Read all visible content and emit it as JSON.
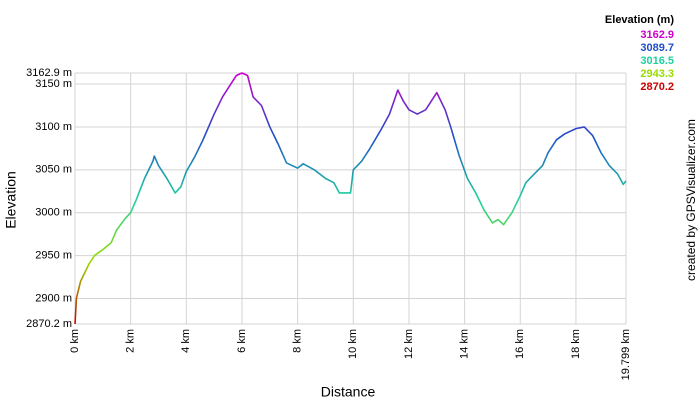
{
  "chart_data": {
    "type": "line",
    "x_label": "Distance",
    "y_label": "Elevation",
    "credit": "created by GPSVisualizer.com",
    "x": [
      0,
      0.05,
      0.2,
      0.5,
      0.7,
      1.0,
      1.3,
      1.5,
      1.8,
      2.0,
      2.2,
      2.5,
      2.8,
      2.85,
      3.0,
      3.3,
      3.6,
      3.8,
      4.0,
      4.3,
      4.6,
      4.8,
      5.0,
      5.3,
      5.5,
      5.8,
      6.0,
      6.2,
      6.4,
      6.7,
      7.0,
      7.3,
      7.6,
      8.0,
      8.2,
      8.6,
      9.0,
      9.3,
      9.5,
      9.9,
      10.0,
      10.3,
      10.6,
      11.0,
      11.3,
      11.6,
      11.8,
      12.0,
      12.3,
      12.6,
      12.9,
      13.0,
      13.3,
      13.5,
      13.8,
      14.1,
      14.4,
      14.7,
      14.9,
      15.0,
      15.2,
      15.4,
      15.7,
      16.0,
      16.2,
      16.5,
      16.8,
      17.0,
      17.3,
      17.6,
      18.0,
      18.3,
      18.6,
      18.9,
      19.2,
      19.5,
      19.7,
      19.799
    ],
    "values": [
      2870.2,
      2900,
      2920,
      2940,
      2950,
      2957,
      2965,
      2980,
      2993,
      3000,
      3015,
      3040,
      3060,
      3066,
      3055,
      3040,
      3023,
      3030,
      3048,
      3065,
      3085,
      3100,
      3115,
      3135,
      3145,
      3160,
      3162.9,
      3160,
      3135,
      3125,
      3100,
      3080,
      3058,
      3052,
      3057,
      3050,
      3040,
      3035,
      3023,
      3023,
      3050,
      3060,
      3075,
      3097,
      3115,
      3143,
      3130,
      3120,
      3115,
      3120,
      3135,
      3140,
      3120,
      3100,
      3067,
      3040,
      3023,
      3003,
      2993,
      2988,
      2992,
      2986,
      3000,
      3020,
      3035,
      3045,
      3055,
      3070,
      3085,
      3092,
      3098,
      3100,
      3090,
      3070,
      3055,
      3045,
      3033,
      3037
    ],
    "xlim": [
      0,
      19.799
    ],
    "ylim": [
      2870.2,
      3162.9
    ],
    "xticks": [
      {
        "value": 0,
        "label": "0 km"
      },
      {
        "value": 2,
        "label": "2 km"
      },
      {
        "value": 4,
        "label": "4 km"
      },
      {
        "value": 6,
        "label": "6 km"
      },
      {
        "value": 8,
        "label": "8 km"
      },
      {
        "value": 10,
        "label": "10 km"
      },
      {
        "value": 12,
        "label": "12 km"
      },
      {
        "value": 14,
        "label": "14 km"
      },
      {
        "value": 16,
        "label": "16 km"
      },
      {
        "value": 18,
        "label": "18 km"
      },
      {
        "value": 19.799,
        "label": "19.799 km"
      }
    ],
    "yticks": [
      {
        "value": 2870.2,
        "label": "2870.2 m"
      },
      {
        "value": 2900,
        "label": "2900 m"
      },
      {
        "value": 2950,
        "label": "2950 m"
      },
      {
        "value": 3000,
        "label": "3000 m"
      },
      {
        "value": 3050,
        "label": "3050 m"
      },
      {
        "value": 3100,
        "label": "3100 m"
      },
      {
        "value": 3150,
        "label": "3150 m"
      },
      {
        "value": 3162.9,
        "label": "3162.9 m"
      }
    ],
    "grid": true,
    "color_scale": {
      "title": "Elevation (m)",
      "values": [
        3162.9,
        3089.7,
        3016.5,
        2943.3,
        2870.2
      ],
      "colors": [
        "#cc00cc",
        "#1f4fc8",
        "#1fd0a0",
        "#99dd00",
        "#cc0000"
      ]
    }
  }
}
